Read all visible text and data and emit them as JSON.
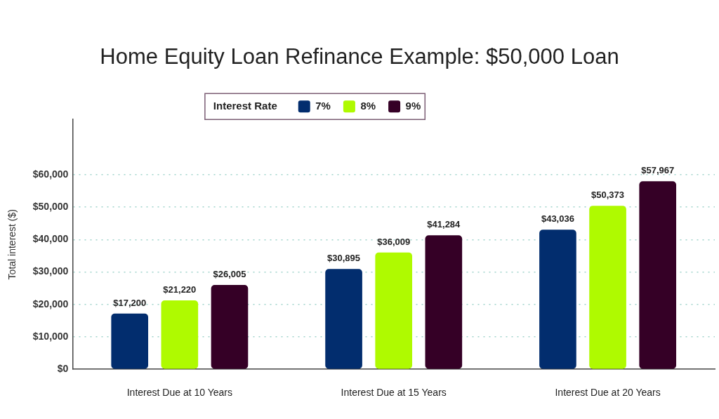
{
  "chart_data": {
    "type": "bar",
    "title": "Home Equity Loan Refinance Example: $50,000 Loan",
    "ylabel": "Total interest ($)",
    "legend_title": "Interest Rate",
    "categories": [
      "Interest Due at 10 Years",
      "Interest Due at 15 Years",
      "Interest Due at 20 Years"
    ],
    "series": [
      {
        "name": "7%",
        "color": "#022d6e",
        "values": [
          17200,
          30895,
          43036
        ],
        "value_labels": [
          "$17,200",
          "$30,895",
          "$43,036"
        ]
      },
      {
        "name": "8%",
        "color": "#affa00",
        "values": [
          21220,
          36009,
          50373
        ],
        "value_labels": [
          "$21,220",
          "$36,009",
          "$50,373"
        ]
      },
      {
        "name": "9%",
        "color": "#350026",
        "values": [
          26005,
          41284,
          57967
        ],
        "value_labels": [
          "$26,005",
          "$41,284",
          "$57,967"
        ]
      }
    ],
    "ylim": [
      0,
      77000
    ],
    "yticks": [
      {
        "value": 0,
        "label": "$0"
      },
      {
        "value": 10000,
        "label": "$10,000"
      },
      {
        "value": 20000,
        "label": "$20,000"
      },
      {
        "value": 30000,
        "label": "$30,000"
      },
      {
        "value": 40000,
        "label": "$40,000"
      },
      {
        "value": 50000,
        "label": "$50,000"
      },
      {
        "value": 60000,
        "label": "$60,000"
      }
    ],
    "grid": "y",
    "legend": "top"
  }
}
